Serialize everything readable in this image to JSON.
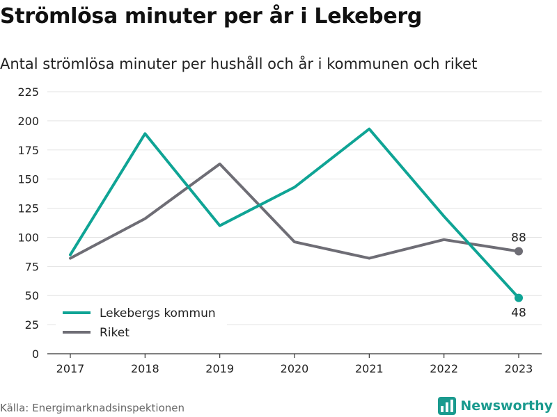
{
  "title": "Strömlösa minuter per år i Lekeberg",
  "subtitle": "Antal strömlösa minuter per hushåll och år i kommunen och riket",
  "source": "Källa: Energimarknadsinspektionen",
  "brand": {
    "name": "Newsworthy",
    "icon": "newsworthy-logo-icon",
    "color": "#1a9a8e"
  },
  "chart_data": {
    "type": "line",
    "categories": [
      "2017",
      "2018",
      "2019",
      "2020",
      "2021",
      "2022",
      "2023"
    ],
    "ylim": [
      0,
      225
    ],
    "yticks": [
      0,
      25,
      50,
      75,
      100,
      125,
      150,
      175,
      200,
      225
    ],
    "ytick_labels": [
      "0",
      "25",
      "50",
      "75",
      "100",
      "125",
      "150",
      "175",
      "200",
      "225"
    ],
    "grid": true,
    "legend_position": "bottom-left",
    "series": [
      {
        "name": "Lekebergs kommun",
        "color": "#0fa495",
        "values": [
          85,
          189,
          110,
          143,
          193,
          118,
          48
        ],
        "end_label": "48"
      },
      {
        "name": "Riket",
        "color": "#6e6d75",
        "values": [
          82,
          116,
          163,
          96,
          82,
          98,
          88
        ],
        "end_label": "88"
      }
    ]
  }
}
